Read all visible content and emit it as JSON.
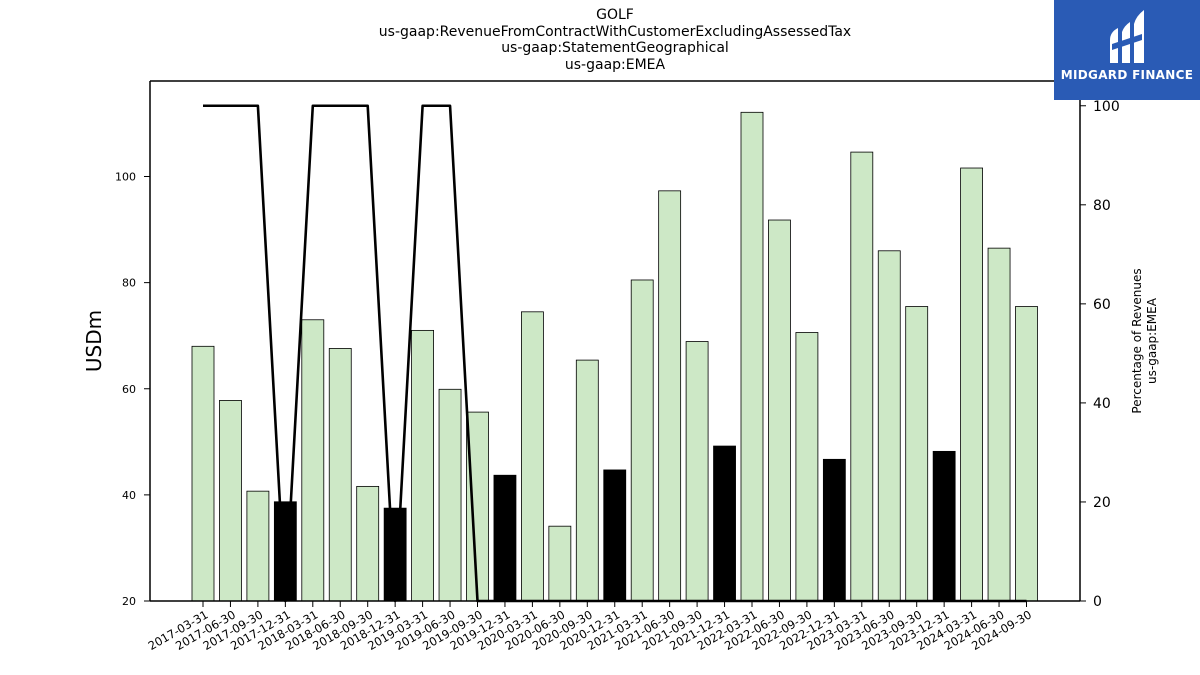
{
  "chart_data": {
    "type": "bar",
    "title_lines": [
      "GOLF",
      "us-gaap:RevenueFromContractWithCustomerExcludingAssessedTax",
      "us-gaap:StatementGeographical",
      "us-gaap:EMEA"
    ],
    "ylabel": "USDm",
    "y2label_lines": [
      "Percentage of Revenues",
      "us-gaap:EMEA"
    ],
    "ylim": [
      20,
      118
    ],
    "y2lim": [
      0,
      105
    ],
    "yticks": [
      20,
      40,
      60,
      80,
      100
    ],
    "y2ticks": [
      0,
      20,
      40,
      60,
      80,
      100
    ],
    "categories": [
      "2017-03-31",
      "2017-06-30",
      "2017-09-30",
      "2017-12-31",
      "2018-03-31",
      "2018-06-30",
      "2018-09-30",
      "2018-12-31",
      "2019-03-31",
      "2019-06-30",
      "2019-09-30",
      "2019-12-31",
      "2020-03-31",
      "2020-06-30",
      "2020-09-30",
      "2020-12-31",
      "2021-03-31",
      "2021-06-30",
      "2021-09-30",
      "2021-12-31",
      "2022-03-31",
      "2022-06-30",
      "2022-09-30",
      "2022-12-31",
      "2023-03-31",
      "2023-06-30",
      "2023-09-30",
      "2023-12-31",
      "2024-03-31",
      "2024-06-30",
      "2024-09-30"
    ],
    "series": [
      {
        "type": "bar",
        "values": [
          68.0,
          57.8,
          40.7,
          38.7,
          73.0,
          67.6,
          41.6,
          37.5,
          71.0,
          59.9,
          55.6,
          43.7,
          74.5,
          34.1,
          65.4,
          44.7,
          80.5,
          97.3,
          68.9,
          49.2,
          112.1,
          91.8,
          70.6,
          46.7,
          104.6,
          86.0,
          75.5,
          48.2,
          101.6,
          86.5,
          75.5
        ]
      },
      {
        "type": "line",
        "axis": "right",
        "values": [
          100,
          100,
          100,
          0,
          100,
          100,
          100,
          0,
          100,
          100,
          0,
          0,
          0,
          0,
          0,
          0,
          0,
          0,
          0,
          0,
          0,
          0,
          0,
          0,
          0,
          0,
          0,
          0,
          0,
          0,
          0
        ]
      }
    ],
    "highlight_quarter_suffix": "12-31",
    "colors": {
      "bar_fill": "#cde8c6",
      "bar_highlight": "#000000",
      "bar_edge": "#000000",
      "line": "#000000"
    },
    "grid": false
  },
  "logo": {
    "text": "MIDGARD FINANCE",
    "background": "#2a5bb5"
  }
}
